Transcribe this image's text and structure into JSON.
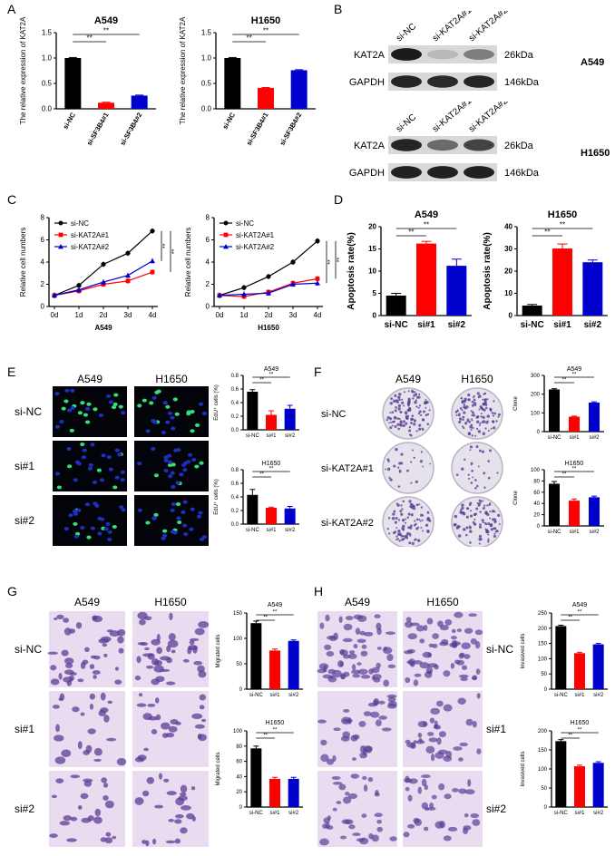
{
  "panels": {
    "A": {
      "label": "A",
      "charts": [
        {
          "title": "A549",
          "ylabel": "The relative expression of KAT2A",
          "categories": [
            "si-NC",
            "si-SF3B4#1",
            "si-SF3B4#2"
          ],
          "values": [
            1.0,
            0.12,
            0.26
          ],
          "errors": [
            0.01,
            0.01,
            0.01
          ],
          "ylim": [
            0,
            1.5
          ],
          "yticks": [
            "0.0",
            "0.5",
            "1.0",
            "1.5"
          ],
          "sig": [
            "**",
            "**"
          ]
        },
        {
          "title": "H1650",
          "ylabel": "The relative expression of KAT2A",
          "categories": [
            "si-NC",
            "si-SF3B4#1",
            "si-SF3B4#2"
          ],
          "values": [
            1.0,
            0.41,
            0.76
          ],
          "errors": [
            0.01,
            0.01,
            0.01
          ],
          "ylim": [
            0,
            1.5
          ],
          "yticks": [
            "0.0",
            "0.5",
            "1.0",
            "1.5"
          ],
          "sig": [
            "**",
            "**"
          ]
        }
      ]
    },
    "B": {
      "label": "B",
      "blots": [
        {
          "cell": "A549",
          "lanes": [
            "si-NC",
            "si-KAT2A#1",
            "si-KAT2A#2"
          ],
          "rows": [
            {
              "protein": "KAT2A",
              "size": "26kDa"
            },
            {
              "protein": "GAPDH",
              "size": "146kDa"
            }
          ]
        },
        {
          "cell": "H1650",
          "lanes": [
            "si-NC",
            "si-KAT2A#1",
            "si-KAT2A#2"
          ],
          "rows": [
            {
              "protein": "KAT2A",
              "size": "26kDa"
            },
            {
              "protein": "GAPDH",
              "size": "146kDa"
            }
          ]
        }
      ]
    },
    "C": {
      "label": "C",
      "charts": [
        {
          "xlabel": "A549",
          "ylabel": "Relative cell numbers",
          "x": [
            "0d",
            "1d",
            "2d",
            "3d",
            "4d"
          ],
          "ylim": [
            0,
            8
          ],
          "yticks": [
            "0",
            "2",
            "4",
            "6",
            "8"
          ],
          "series": [
            {
              "name": "si-NC",
              "values": [
                1.0,
                1.9,
                3.8,
                4.8,
                6.8
              ]
            },
            {
              "name": "si-KAT2A#1",
              "values": [
                1.0,
                1.4,
                2.0,
                2.3,
                3.1
              ]
            },
            {
              "name": "si-KAT2A#2",
              "values": [
                1.0,
                1.5,
                2.2,
                2.8,
                4.1
              ]
            }
          ],
          "sig": [
            "**",
            "**"
          ]
        },
        {
          "xlabel": "H1650",
          "ylabel": "Relative cell numbers",
          "x": [
            "0d",
            "1d",
            "2d",
            "3d",
            "4d"
          ],
          "ylim": [
            0,
            8
          ],
          "yticks": [
            "0",
            "2",
            "4",
            "6",
            "8"
          ],
          "series": [
            {
              "name": "si-NC",
              "values": [
                1.0,
                1.7,
                2.7,
                4.0,
                5.9
              ]
            },
            {
              "name": "si-KAT2A#1",
              "values": [
                1.0,
                0.9,
                1.3,
                2.1,
                2.5
              ]
            },
            {
              "name": "si-KAT2A#2",
              "values": [
                1.0,
                1.1,
                1.2,
                2.0,
                2.1
              ]
            }
          ],
          "sig": [
            "**",
            "**"
          ]
        }
      ]
    },
    "D": {
      "label": "D",
      "charts": [
        {
          "title": "A549",
          "ylabel": "Apoptosis rate(%)",
          "categories": [
            "si-NC",
            "si#1",
            "si#2"
          ],
          "values": [
            4.5,
            16.2,
            11.2
          ],
          "errors": [
            0.5,
            0.5,
            1.5
          ],
          "ylim": [
            0,
            20
          ],
          "yticks": [
            "0",
            "5",
            "10",
            "15",
            "20"
          ],
          "sig": [
            "**",
            "**"
          ]
        },
        {
          "title": "H1650",
          "ylabel": "Apoptosis rate(%)",
          "categories": [
            "si-NC",
            "si#1",
            "si#2"
          ],
          "values": [
            4.5,
            30.2,
            24.0
          ],
          "errors": [
            0.5,
            2.0,
            1.0
          ],
          "ylim": [
            0,
            40
          ],
          "yticks": [
            "0",
            "10",
            "20",
            "30",
            "40"
          ],
          "sig": [
            "**",
            "**"
          ]
        }
      ]
    },
    "E": {
      "label": "E",
      "cols": [
        "A549",
        "H1650"
      ],
      "rows": [
        "si-NC",
        "si#1",
        "si#2"
      ],
      "charts": [
        {
          "title": "A549",
          "ylabel": "EdU⁺ cells (%)",
          "categories": [
            "si-NC",
            "si#1",
            "si#2"
          ],
          "values": [
            0.56,
            0.22,
            0.31
          ],
          "errors": [
            0.03,
            0.06,
            0.05
          ],
          "ylim": [
            0,
            0.8
          ],
          "yticks": [
            "0.0",
            "0.2",
            "0.4",
            "0.6",
            "0.8"
          ],
          "sig": [
            "**",
            "**"
          ]
        },
        {
          "title": "H1650",
          "ylabel": "EdU⁺ cells (%)",
          "categories": [
            "si-NC",
            "si#1",
            "si#2"
          ],
          "values": [
            0.43,
            0.24,
            0.23
          ],
          "errors": [
            0.08,
            0.01,
            0.03
          ],
          "ylim": [
            0,
            0.8
          ],
          "yticks": [
            "0.0",
            "0.2",
            "0.4",
            "0.6",
            "0.8"
          ],
          "sig": [
            "**",
            "**"
          ]
        }
      ]
    },
    "F": {
      "label": "F",
      "cols": [
        "A549",
        "H1650"
      ],
      "rows": [
        "si-NC",
        "si-KAT2A#1",
        "si-KAT2A#2"
      ],
      "charts": [
        {
          "title": "A549",
          "ylabel": "Clone",
          "categories": [
            "si-NC",
            "si#1",
            "si#2"
          ],
          "values": [
            225,
            80,
            155
          ],
          "errors": [
            4,
            3,
            4
          ],
          "ylim": [
            0,
            300
          ],
          "yticks": [
            "0",
            "100",
            "200",
            "300"
          ],
          "sig": [
            "**",
            "**"
          ]
        },
        {
          "title": "H1650",
          "ylabel": "Clone",
          "categories": [
            "si-NC",
            "si#1",
            "si#2"
          ],
          "values": [
            75,
            45,
            51
          ],
          "errors": [
            4,
            3,
            2
          ],
          "ylim": [
            0,
            100
          ],
          "yticks": [
            "0",
            "20",
            "40",
            "60",
            "80",
            "100"
          ],
          "sig": [
            "**",
            "**"
          ]
        }
      ]
    },
    "G": {
      "label": "G",
      "cols": [
        "A549",
        "H1650"
      ],
      "rows": [
        "si-NC",
        "si#1",
        "si#2"
      ],
      "charts": [
        {
          "title": "A549",
          "ylabel": "Migrated cells",
          "categories": [
            "si-NC",
            "si#1",
            "si#2"
          ],
          "values": [
            130,
            76,
            95
          ],
          "errors": [
            4,
            3,
            2
          ],
          "ylim": [
            0,
            150
          ],
          "yticks": [
            "0",
            "50",
            "100",
            "150"
          ],
          "sig": [
            "**",
            "**"
          ]
        },
        {
          "title": "H1650",
          "ylabel": "Migrated cells",
          "categories": [
            "si-NC",
            "si#1",
            "si#2"
          ],
          "values": [
            77,
            37,
            37
          ],
          "errors": [
            3,
            2,
            2
          ],
          "ylim": [
            0,
            100
          ],
          "yticks": [
            "0",
            "20",
            "40",
            "60",
            "80",
            "100"
          ],
          "sig": [
            "**",
            "**"
          ]
        }
      ]
    },
    "H": {
      "label": "H",
      "cols": [
        "A549",
        "H1650"
      ],
      "rows": [
        "si-NC",
        "si#1",
        "si#2"
      ],
      "charts": [
        {
          "title": "A549",
          "ylabel": "Invasived cells",
          "categories": [
            "si-NC",
            "si#1",
            "si#2"
          ],
          "values": [
            207,
            118,
            147
          ],
          "errors": [
            3,
            3,
            3
          ],
          "ylim": [
            0,
            250
          ],
          "yticks": [
            "0",
            "50",
            "100",
            "150",
            "200",
            "250"
          ],
          "sig": [
            "**",
            "**"
          ]
        },
        {
          "title": "H1650",
          "ylabel": "Invasived cells",
          "categories": [
            "si-NC",
            "si#1",
            "si#2"
          ],
          "values": [
            173,
            107,
            116
          ],
          "errors": [
            4,
            3,
            3
          ],
          "ylim": [
            0,
            200
          ],
          "yticks": [
            "0",
            "50",
            "100",
            "150",
            "200"
          ],
          "sig": [
            "**",
            "**"
          ]
        }
      ]
    }
  },
  "colors": {
    "black": "#000000",
    "red": "#ff0000",
    "blue": "#0000cc",
    "edu_bg": "#02040a",
    "edu_cell": "#32e07a",
    "edu_nuc": "#1e2fbf",
    "dish": "#e6e2ec",
    "stain": "#5a3e96",
    "transwell_bg": "#e9dcf0"
  }
}
